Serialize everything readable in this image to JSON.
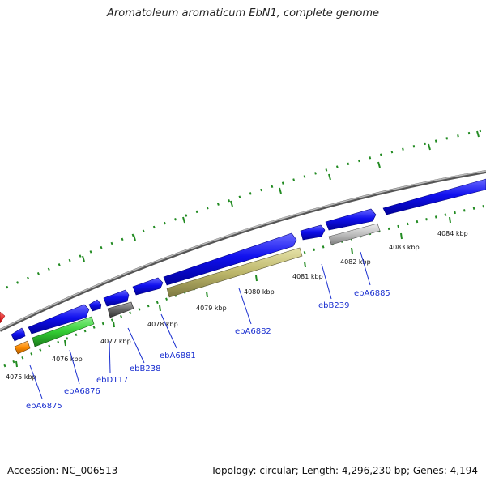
{
  "title": "Aromatoleum aromaticum EbN1, complete genome",
  "footer": {
    "accession": "Accession: NC_006513",
    "summary": "Topology: circular; Length: 4,296,230 bp; Genes: 4,194"
  },
  "colors": {
    "forward_gene": "#1010ee",
    "reverse_gene_green": "#33cc33",
    "reverse_gene_khaki": "#bdb76b",
    "reverse_gene_grey": "#666666",
    "reverse_gene_lightgrey": "#c0c0c0",
    "reverse_gene_orange": "#ff8c00",
    "tick": "#228b22",
    "backbone": "#888888",
    "gene_label": "#1a2fd0",
    "partial_gene_red": "#ee0000"
  },
  "scale_labels": [
    "4075 kbp",
    "4076 kbp",
    "4077 kbp",
    "4078 kbp",
    "4079 kbp",
    "4080 kbp",
    "4081 kbp",
    "4082 kbp",
    "4083 kbp",
    "4084 kbp"
  ],
  "gene_labels": [
    "ebA6875",
    "ebA6876",
    "ebD117",
    "ebB238",
    "ebA6881",
    "ebA6882",
    "ebB239",
    "ebA6885"
  ]
}
